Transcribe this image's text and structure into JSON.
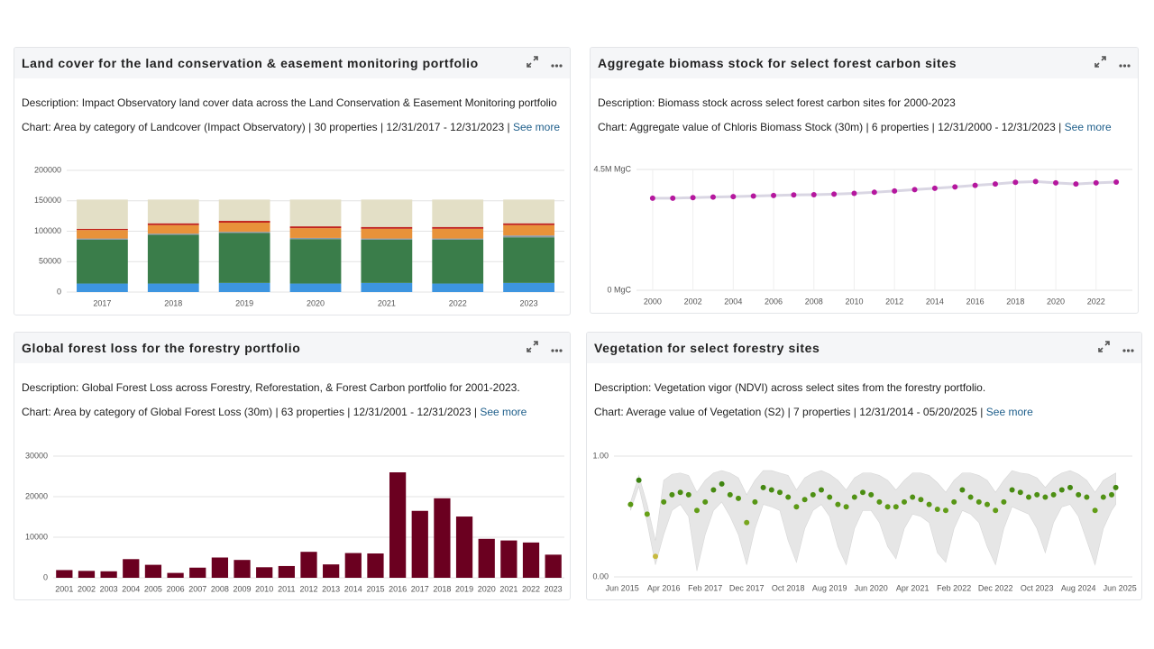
{
  "panels": [
    {
      "title": "Land cover for the land conservation & easement monitoring portfolio",
      "description": "Description: Impact Observatory land cover data across the Land Conservation & Easement Monitoring portfolio",
      "chart_info": "Chart: Area by category of Landcover (Impact Observatory) | 30 properties | 12/31/2017 - 12/31/2023 |",
      "see_more": "See more",
      "chart": {
        "type": "bar",
        "stacked": true,
        "grid": true,
        "categories": [
          "2017",
          "2018",
          "2019",
          "2020",
          "2021",
          "2022",
          "2023"
        ],
        "ylim": [
          0,
          200000
        ],
        "yticks": [
          0,
          50000,
          100000,
          150000,
          200000
        ],
        "series": [
          {
            "color": "#3d95e0",
            "values": [
              14000,
              14000,
              15000,
              14000,
              15000,
              14000,
              15000
            ]
          },
          {
            "color": "#3a7d4a",
            "values": [
              72000,
              80000,
              82000,
              73000,
              71000,
              72000,
              75000
            ]
          },
          {
            "color": "#8a9aa8",
            "values": [
              2000,
              2000,
              2000,
              2000,
              2000,
              2000,
              3000
            ]
          },
          {
            "color": "#e8923a",
            "values": [
              14000,
              14000,
              15000,
              16000,
              16000,
              16000,
              17000
            ]
          },
          {
            "color": "#c0231c",
            "values": [
              2000,
              3000,
              3000,
              3000,
              3000,
              3000,
              3000
            ]
          },
          {
            "color": "#e3dfc6",
            "values": [
              48000,
              39000,
              35000,
              44000,
              45000,
              45000,
              39000
            ]
          }
        ]
      }
    },
    {
      "title": "Aggregate biomass stock for select forest carbon sites",
      "description": "Description: Biomass stock across select forest carbon sites for 2000-2023",
      "chart_info": "Chart: Aggregate value of Chloris Biomass Stock (30m) | 6 properties | 12/31/2000 - 12/31/2023 |",
      "see_more": "See more",
      "chart": {
        "type": "line",
        "grid": true,
        "xgrid": true,
        "color": "#b5179e",
        "line_color": "#d9d6e3",
        "x": [
          2000,
          2001,
          2002,
          2003,
          2004,
          2005,
          2006,
          2007,
          2008,
          2009,
          2010,
          2011,
          2012,
          2013,
          2014,
          2015,
          2016,
          2017,
          2018,
          2019,
          2020,
          2021,
          2022,
          2023
        ],
        "values": [
          3430000,
          3430000,
          3450000,
          3470000,
          3490000,
          3510000,
          3530000,
          3550000,
          3560000,
          3580000,
          3610000,
          3650000,
          3700000,
          3750000,
          3800000,
          3850000,
          3910000,
          3960000,
          4020000,
          4050000,
          4000000,
          3960000,
          4000000,
          4030000
        ],
        "xlim": [
          1999.2,
          2023.8
        ],
        "xticks": [
          2000,
          2002,
          2004,
          2006,
          2008,
          2010,
          2012,
          2014,
          2016,
          2018,
          2020,
          2022
        ],
        "ylim": [
          0,
          4500000
        ],
        "yticks": [
          {
            "value": 0,
            "label": "0 MgC"
          },
          {
            "value": 4500000,
            "label": "4.5M MgC"
          }
        ]
      }
    },
    {
      "title": "Global forest loss for the forestry portfolio",
      "description": "Description: Global Forest Loss across Forestry, Reforestation, & Forest Carbon portfolio for 2001-2023.",
      "chart_info": "Chart: Area by category of Global Forest Loss (30m) | 63 properties | 12/31/2001 - 12/31/2023 |",
      "see_more": "See more",
      "chart": {
        "type": "bar",
        "grid": true,
        "color": "#6b0020",
        "categories": [
          "2001",
          "2002",
          "2003",
          "2004",
          "2005",
          "2006",
          "2007",
          "2008",
          "2009",
          "2010",
          "2011",
          "2012",
          "2013",
          "2014",
          "2015",
          "2016",
          "2017",
          "2018",
          "2019",
          "2020",
          "2021",
          "2022",
          "2023"
        ],
        "values": [
          1900,
          1700,
          1600,
          4600,
          3200,
          1200,
          2500,
          5000,
          4400,
          2600,
          2900,
          6400,
          3300,
          6100,
          6000,
          26000,
          16500,
          19600,
          15100,
          9600,
          9200,
          8700,
          5700
        ],
        "ylim": [
          0,
          30000
        ],
        "yticks": [
          0,
          10000,
          20000,
          30000
        ]
      }
    },
    {
      "title": "Vegetation for select forestry sites",
      "description": "Description: Vegetation vigor (NDVI) across select sites from the forestry portfolio.",
      "chart_info": "Chart: Average value of Vegetation (S2) | 7 properties | 12/31/2014 - 05/20/2025 |",
      "see_more": "See more",
      "chart": {
        "type": "scatter",
        "grid": true,
        "band_color": "#e6e6e6",
        "color_scale": [
          "#f5c451",
          "#6aa318",
          "#1a6b0a"
        ],
        "x": [
          "2015-08",
          "2015-10",
          "2015-12",
          "2016-02",
          "2016-04",
          "2016-06",
          "2016-08",
          "2016-10",
          "2016-12",
          "2017-02",
          "2017-04",
          "2017-06",
          "2017-08",
          "2017-10",
          "2017-12",
          "2018-02",
          "2018-04",
          "2018-06",
          "2018-08",
          "2018-10",
          "2018-12",
          "2019-02",
          "2019-04",
          "2019-06",
          "2019-08",
          "2019-10",
          "2019-12",
          "2020-02",
          "2020-04",
          "2020-06",
          "2020-08",
          "2020-10",
          "2020-12",
          "2021-02",
          "2021-04",
          "2021-06",
          "2021-08",
          "2021-10",
          "2021-12",
          "2022-02",
          "2022-04",
          "2022-06",
          "2022-08",
          "2022-10",
          "2022-12",
          "2023-02",
          "2023-04",
          "2023-06",
          "2023-08",
          "2023-10",
          "2023-12",
          "2024-02",
          "2024-04",
          "2024-06",
          "2024-08",
          "2024-10",
          "2024-12",
          "2025-02",
          "2025-04",
          "2025-05"
        ],
        "values": [
          0.6,
          0.8,
          0.52,
          0.17,
          0.62,
          0.68,
          0.7,
          0.68,
          0.55,
          0.62,
          0.72,
          0.77,
          0.68,
          0.65,
          0.45,
          0.62,
          0.74,
          0.72,
          0.7,
          0.66,
          0.58,
          0.64,
          0.68,
          0.72,
          0.66,
          0.6,
          0.58,
          0.66,
          0.7,
          0.68,
          0.62,
          0.58,
          0.58,
          0.62,
          0.66,
          0.64,
          0.6,
          0.56,
          0.55,
          0.62,
          0.72,
          0.66,
          0.62,
          0.6,
          0.55,
          0.62,
          0.72,
          0.7,
          0.66,
          0.68,
          0.66,
          0.68,
          0.72,
          0.74,
          0.68,
          0.66,
          0.55,
          0.66,
          0.68,
          0.74
        ],
        "lower": [
          0.55,
          0.75,
          0.45,
          0.1,
          0.35,
          0.55,
          0.6,
          0.5,
          0.05,
          0.35,
          0.55,
          0.62,
          0.5,
          0.35,
          0.1,
          0.4,
          0.6,
          0.58,
          0.55,
          0.3,
          0.12,
          0.4,
          0.55,
          0.6,
          0.5,
          0.25,
          0.1,
          0.4,
          0.55,
          0.55,
          0.45,
          0.25,
          0.15,
          0.4,
          0.52,
          0.5,
          0.45,
          0.2,
          0.12,
          0.4,
          0.55,
          0.52,
          0.45,
          0.25,
          0.1,
          0.4,
          0.58,
          0.55,
          0.52,
          0.4,
          0.2,
          0.45,
          0.58,
          0.6,
          0.5,
          0.3,
          0.1,
          0.4,
          0.55,
          0.6
        ],
        "upper": [
          0.62,
          0.84,
          0.6,
          0.3,
          0.8,
          0.85,
          0.86,
          0.84,
          0.7,
          0.8,
          0.86,
          0.88,
          0.86,
          0.82,
          0.68,
          0.8,
          0.88,
          0.88,
          0.86,
          0.84,
          0.72,
          0.82,
          0.86,
          0.88,
          0.85,
          0.8,
          0.72,
          0.82,
          0.86,
          0.86,
          0.84,
          0.8,
          0.72,
          0.8,
          0.86,
          0.86,
          0.84,
          0.78,
          0.7,
          0.8,
          0.86,
          0.86,
          0.84,
          0.8,
          0.7,
          0.8,
          0.88,
          0.86,
          0.85,
          0.82,
          0.74,
          0.82,
          0.86,
          0.88,
          0.85,
          0.8,
          0.7,
          0.8,
          0.84,
          0.86
        ],
        "xlim": [
          "2015-04",
          "2025-09"
        ],
        "xticks": [
          {
            "value": "2015-06",
            "label": "Jun 2015"
          },
          {
            "value": "2016-04",
            "label": "Apr 2016"
          },
          {
            "value": "2017-02",
            "label": "Feb 2017"
          },
          {
            "value": "2017-12",
            "label": "Dec 2017"
          },
          {
            "value": "2018-10",
            "label": "Oct 2018"
          },
          {
            "value": "2019-08",
            "label": "Aug 2019"
          },
          {
            "value": "2020-06",
            "label": "Jun 2020"
          },
          {
            "value": "2021-04",
            "label": "Apr 2021"
          },
          {
            "value": "2022-02",
            "label": "Feb 2022"
          },
          {
            "value": "2022-12",
            "label": "Dec 2022"
          },
          {
            "value": "2023-10",
            "label": "Oct 2023"
          },
          {
            "value": "2024-08",
            "label": "Aug 2024"
          },
          {
            "value": "2025-06",
            "label": "Jun 2025"
          }
        ],
        "ylim": [
          0,
          1
        ],
        "yticks": [
          {
            "value": 0,
            "label": "0.00"
          },
          {
            "value": 1,
            "label": "1.00"
          }
        ]
      }
    }
  ]
}
